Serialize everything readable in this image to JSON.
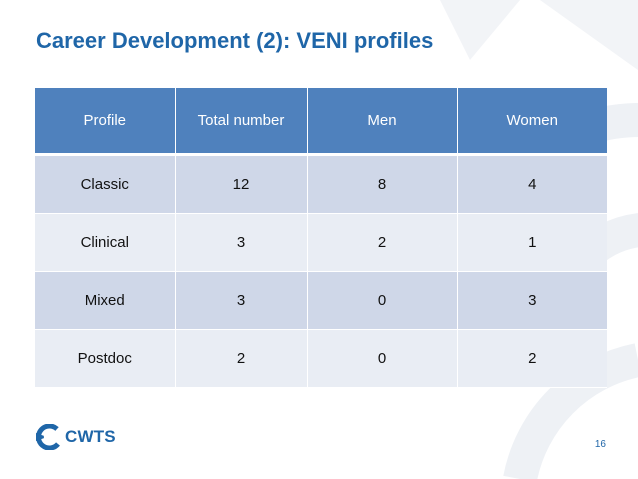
{
  "slide": {
    "title": "Career Development (2): VENI profiles",
    "page_number": "16"
  },
  "logo": {
    "text": "CWTS",
    "icon": "cwts-logo-icon"
  },
  "table": {
    "headers": [
      "Profile",
      "Total number",
      "Men",
      "Women"
    ],
    "rows": [
      [
        "Classic",
        "12",
        "8",
        "4"
      ],
      [
        "Clinical",
        "3",
        "2",
        "1"
      ],
      [
        "Mixed",
        "3",
        "0",
        "3"
      ],
      [
        "Postdoc",
        "2",
        "0",
        "2"
      ]
    ]
  },
  "colors": {
    "title": "#1f66a8",
    "header_bg": "#4f81bd",
    "row_odd_bg": "#cfd7e8",
    "row_even_bg": "#e9edf4"
  }
}
